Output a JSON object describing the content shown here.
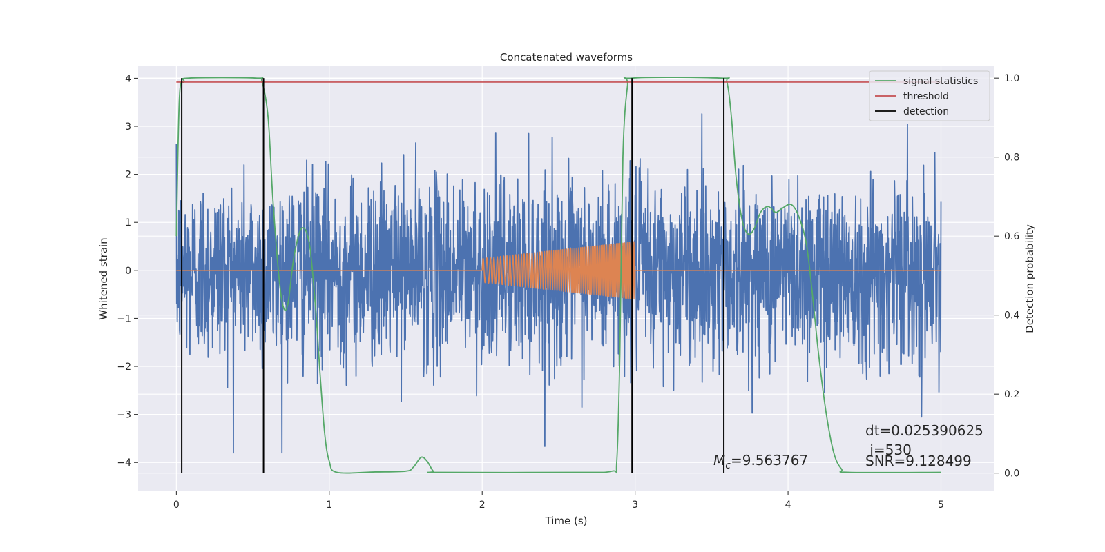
{
  "chart_data": {
    "type": "line",
    "title": "Concatenated waveforms",
    "xlabel": "Time (s)",
    "ylabel": "Whitened strain",
    "y2label": "Detection probability",
    "xlim": [
      -0.25,
      5.35
    ],
    "ylim": [
      -4.6,
      4.25
    ],
    "y2lim": [
      -0.046,
      1.03
    ],
    "x_ticks": [
      0,
      1,
      2,
      3,
      4,
      5
    ],
    "y_ticks": [
      -4,
      -3,
      -2,
      -1,
      0,
      1,
      2,
      3,
      4
    ],
    "y2_ticks": [
      0.0,
      0.2,
      0.4,
      0.6,
      0.8,
      1.0
    ],
    "x_tick_labels": [
      "0",
      "1",
      "2",
      "3",
      "4",
      "5"
    ],
    "y_tick_labels": [
      "−4",
      "−3",
      "−2",
      "−1",
      "0",
      "1",
      "2",
      "3",
      "4"
    ],
    "y2_tick_labels": [
      "0.0",
      "0.2",
      "0.4",
      "0.6",
      "0.8",
      "1.0"
    ],
    "grid": true,
    "legend_position": "top-right",
    "series": [
      {
        "id": "noise",
        "axis": "left",
        "color": "#4c72b0",
        "description": "whitened noisy strain, roughly Gaussian, std ~0.9",
        "x_range": [
          0,
          5
        ]
      },
      {
        "id": "template",
        "axis": "left",
        "color": "#dd8452",
        "description": "chirp waveform between 2.0 and 3.0 s, amplitude rising from ~0.25 to ~0.6, zero elsewhere",
        "chirp_start": 2.0,
        "chirp_end": 3.0,
        "amplitude_start": 0.25,
        "amplitude_end": 0.6,
        "x_range": [
          0,
          5
        ]
      },
      {
        "id": "signal_statistics",
        "name": "signal statistics",
        "axis": "right",
        "color": "#55a868",
        "points": [
          [
            0.0,
            0.6
          ],
          [
            0.02,
            0.95
          ],
          [
            0.05,
            0.99
          ],
          [
            0.08,
            1.0
          ],
          [
            0.52,
            1.0
          ],
          [
            0.56,
            0.99
          ],
          [
            0.6,
            0.9
          ],
          [
            0.63,
            0.7
          ],
          [
            0.67,
            0.5
          ],
          [
            0.7,
            0.42
          ],
          [
            0.73,
            0.43
          ],
          [
            0.77,
            0.55
          ],
          [
            0.82,
            0.62
          ],
          [
            0.87,
            0.58
          ],
          [
            0.91,
            0.42
          ],
          [
            0.94,
            0.25
          ],
          [
            0.97,
            0.1
          ],
          [
            1.0,
            0.03
          ],
          [
            1.05,
            0.002
          ],
          [
            1.3,
            0.003
          ],
          [
            1.5,
            0.005
          ],
          [
            1.55,
            0.015
          ],
          [
            1.6,
            0.04
          ],
          [
            1.64,
            0.03
          ],
          [
            1.68,
            0.005
          ],
          [
            1.72,
            0.002
          ],
          [
            2.6,
            0.002
          ],
          [
            2.85,
            0.005
          ],
          [
            2.88,
            0.03
          ],
          [
            2.9,
            0.3
          ],
          [
            2.92,
            0.8
          ],
          [
            2.95,
            0.98
          ],
          [
            2.98,
            1.0
          ],
          [
            3.56,
            1.0
          ],
          [
            3.6,
            0.99
          ],
          [
            3.63,
            0.9
          ],
          [
            3.66,
            0.75
          ],
          [
            3.7,
            0.64
          ],
          [
            3.74,
            0.605
          ],
          [
            3.78,
            0.62
          ],
          [
            3.82,
            0.66
          ],
          [
            3.87,
            0.675
          ],
          [
            3.92,
            0.66
          ],
          [
            3.96,
            0.67
          ],
          [
            4.02,
            0.68
          ],
          [
            4.07,
            0.65
          ],
          [
            4.12,
            0.58
          ],
          [
            4.16,
            0.45
          ],
          [
            4.2,
            0.3
          ],
          [
            4.25,
            0.15
          ],
          [
            4.3,
            0.05
          ],
          [
            4.35,
            0.01
          ],
          [
            4.4,
            0.002
          ],
          [
            5.0,
            0.002
          ]
        ]
      },
      {
        "id": "threshold",
        "name": "threshold",
        "axis": "right",
        "color": "#c44e52",
        "x": [
          0,
          5
        ],
        "y": [
          0.99,
          0.99
        ]
      },
      {
        "id": "detection",
        "name": "detection",
        "axis": "right",
        "color": "#000000",
        "vertical_lines_x": [
          0.035,
          0.57,
          2.98,
          3.58
        ],
        "y_range": [
          0.0,
          1.0
        ]
      }
    ],
    "legend": [
      "signal statistics",
      "threshold",
      "detection"
    ],
    "annotations": {
      "dt": "dt=0.025390625",
      "i": " i=530",
      "snr": "SNR=9.128499",
      "mc_symbol": "M",
      "mc_subscript": "c",
      "mc_value": "=9.563767"
    }
  }
}
